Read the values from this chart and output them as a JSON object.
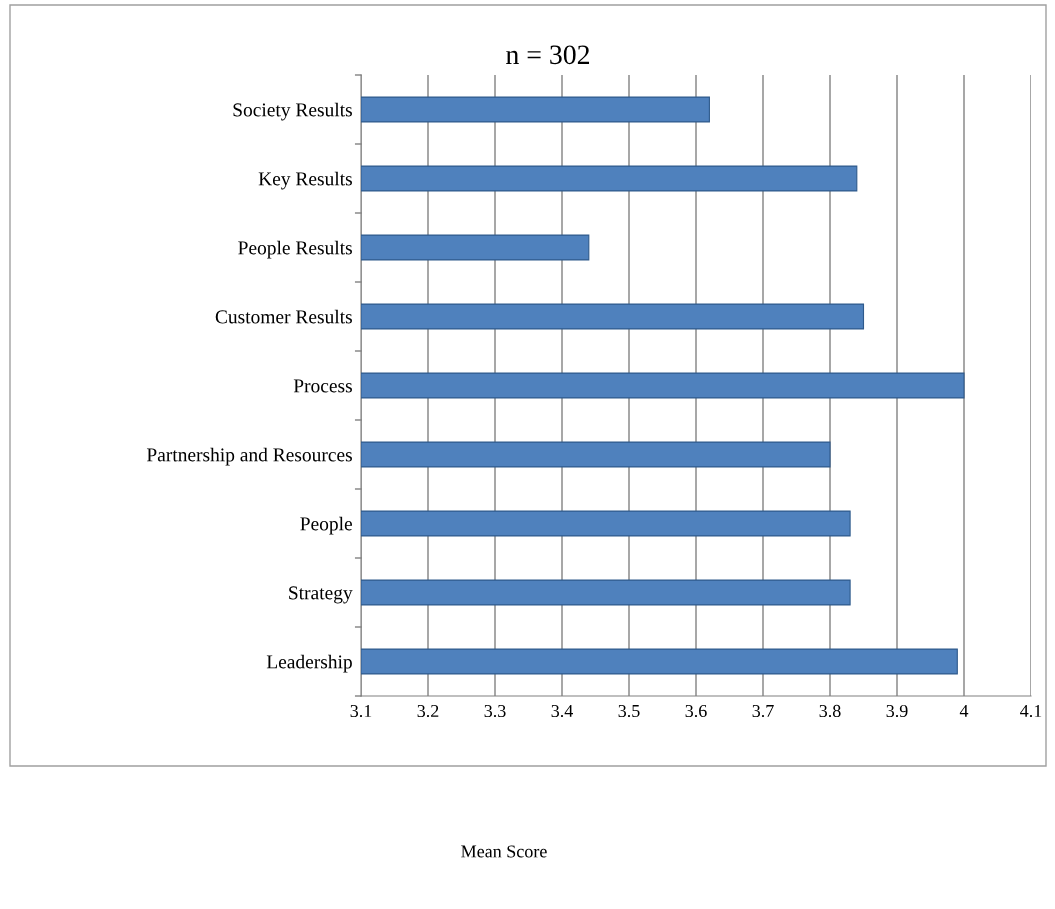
{
  "chart_data": {
    "type": "bar",
    "orientation": "horizontal",
    "title": "n = 302",
    "annotations": [
      "Mean Score"
    ],
    "categories": [
      "Society Results",
      "Key Results",
      "People Results",
      "Customer Results",
      "Process",
      "Partnership and Resources",
      "People",
      "Strategy",
      "Leadership"
    ],
    "values": [
      3.62,
      3.84,
      3.44,
      3.85,
      4.0,
      3.8,
      3.83,
      3.83,
      3.99
    ],
    "color": "#4f81bd",
    "xlim": [
      3.1,
      4.1
    ],
    "xticks": [
      3.1,
      3.2,
      3.3,
      3.4,
      3.5,
      3.6,
      3.7,
      3.8,
      3.9,
      {
        "value": 4.0,
        "label": "4"
      },
      4.1
    ],
    "grid": "x",
    "legend": false
  }
}
